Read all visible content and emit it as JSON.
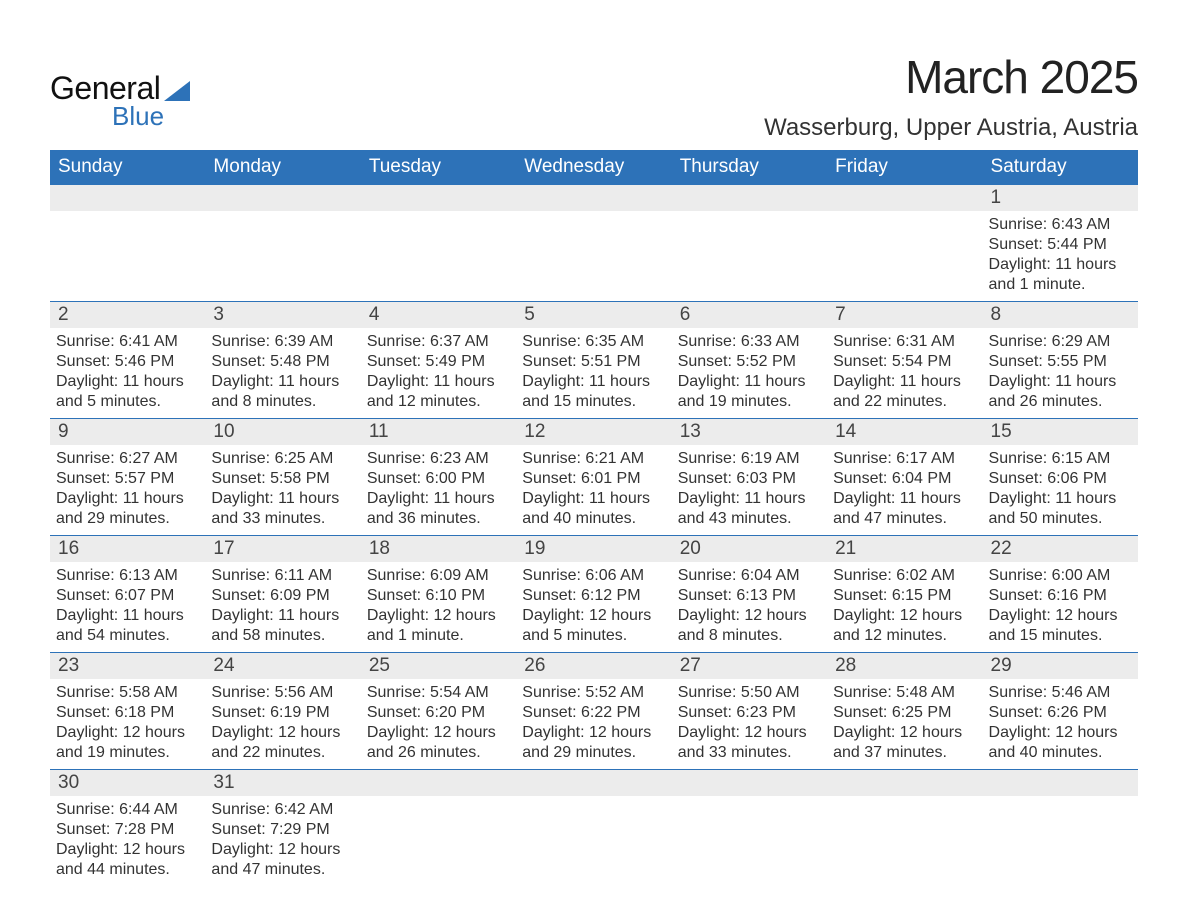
{
  "logo": {
    "text_general": "General",
    "text_blue": "Blue"
  },
  "title": "March 2025",
  "location": "Wasserburg, Upper Austria, Austria",
  "colors": {
    "header_bg": "#2d72b8",
    "header_text": "#ffffff",
    "daynum_bg": "#ececec",
    "border": "#2d72b8",
    "text": "#333333",
    "background": "#ffffff"
  },
  "fonts": {
    "title_size_pt": 34,
    "location_size_pt": 18,
    "header_size_pt": 14,
    "body_size_pt": 12
  },
  "weekdays": [
    "Sunday",
    "Monday",
    "Tuesday",
    "Wednesday",
    "Thursday",
    "Friday",
    "Saturday"
  ],
  "weeks": [
    [
      null,
      null,
      null,
      null,
      null,
      null,
      {
        "n": "1",
        "sunrise": "6:43 AM",
        "sunset": "5:44 PM",
        "daylight": "11 hours and 1 minute."
      }
    ],
    [
      {
        "n": "2",
        "sunrise": "6:41 AM",
        "sunset": "5:46 PM",
        "daylight": "11 hours and 5 minutes."
      },
      {
        "n": "3",
        "sunrise": "6:39 AM",
        "sunset": "5:48 PM",
        "daylight": "11 hours and 8 minutes."
      },
      {
        "n": "4",
        "sunrise": "6:37 AM",
        "sunset": "5:49 PM",
        "daylight": "11 hours and 12 minutes."
      },
      {
        "n": "5",
        "sunrise": "6:35 AM",
        "sunset": "5:51 PM",
        "daylight": "11 hours and 15 minutes."
      },
      {
        "n": "6",
        "sunrise": "6:33 AM",
        "sunset": "5:52 PM",
        "daylight": "11 hours and 19 minutes."
      },
      {
        "n": "7",
        "sunrise": "6:31 AM",
        "sunset": "5:54 PM",
        "daylight": "11 hours and 22 minutes."
      },
      {
        "n": "8",
        "sunrise": "6:29 AM",
        "sunset": "5:55 PM",
        "daylight": "11 hours and 26 minutes."
      }
    ],
    [
      {
        "n": "9",
        "sunrise": "6:27 AM",
        "sunset": "5:57 PM",
        "daylight": "11 hours and 29 minutes."
      },
      {
        "n": "10",
        "sunrise": "6:25 AM",
        "sunset": "5:58 PM",
        "daylight": "11 hours and 33 minutes."
      },
      {
        "n": "11",
        "sunrise": "6:23 AM",
        "sunset": "6:00 PM",
        "daylight": "11 hours and 36 minutes."
      },
      {
        "n": "12",
        "sunrise": "6:21 AM",
        "sunset": "6:01 PM",
        "daylight": "11 hours and 40 minutes."
      },
      {
        "n": "13",
        "sunrise": "6:19 AM",
        "sunset": "6:03 PM",
        "daylight": "11 hours and 43 minutes."
      },
      {
        "n": "14",
        "sunrise": "6:17 AM",
        "sunset": "6:04 PM",
        "daylight": "11 hours and 47 minutes."
      },
      {
        "n": "15",
        "sunrise": "6:15 AM",
        "sunset": "6:06 PM",
        "daylight": "11 hours and 50 minutes."
      }
    ],
    [
      {
        "n": "16",
        "sunrise": "6:13 AM",
        "sunset": "6:07 PM",
        "daylight": "11 hours and 54 minutes."
      },
      {
        "n": "17",
        "sunrise": "6:11 AM",
        "sunset": "6:09 PM",
        "daylight": "11 hours and 58 minutes."
      },
      {
        "n": "18",
        "sunrise": "6:09 AM",
        "sunset": "6:10 PM",
        "daylight": "12 hours and 1 minute."
      },
      {
        "n": "19",
        "sunrise": "6:06 AM",
        "sunset": "6:12 PM",
        "daylight": "12 hours and 5 minutes."
      },
      {
        "n": "20",
        "sunrise": "6:04 AM",
        "sunset": "6:13 PM",
        "daylight": "12 hours and 8 minutes."
      },
      {
        "n": "21",
        "sunrise": "6:02 AM",
        "sunset": "6:15 PM",
        "daylight": "12 hours and 12 minutes."
      },
      {
        "n": "22",
        "sunrise": "6:00 AM",
        "sunset": "6:16 PM",
        "daylight": "12 hours and 15 minutes."
      }
    ],
    [
      {
        "n": "23",
        "sunrise": "5:58 AM",
        "sunset": "6:18 PM",
        "daylight": "12 hours and 19 minutes."
      },
      {
        "n": "24",
        "sunrise": "5:56 AM",
        "sunset": "6:19 PM",
        "daylight": "12 hours and 22 minutes."
      },
      {
        "n": "25",
        "sunrise": "5:54 AM",
        "sunset": "6:20 PM",
        "daylight": "12 hours and 26 minutes."
      },
      {
        "n": "26",
        "sunrise": "5:52 AM",
        "sunset": "6:22 PM",
        "daylight": "12 hours and 29 minutes."
      },
      {
        "n": "27",
        "sunrise": "5:50 AM",
        "sunset": "6:23 PM",
        "daylight": "12 hours and 33 minutes."
      },
      {
        "n": "28",
        "sunrise": "5:48 AM",
        "sunset": "6:25 PM",
        "daylight": "12 hours and 37 minutes."
      },
      {
        "n": "29",
        "sunrise": "5:46 AM",
        "sunset": "6:26 PM",
        "daylight": "12 hours and 40 minutes."
      }
    ],
    [
      {
        "n": "30",
        "sunrise": "6:44 AM",
        "sunset": "7:28 PM",
        "daylight": "12 hours and 44 minutes."
      },
      {
        "n": "31",
        "sunrise": "6:42 AM",
        "sunset": "7:29 PM",
        "daylight": "12 hours and 47 minutes."
      },
      null,
      null,
      null,
      null,
      null
    ]
  ],
  "labels": {
    "sunrise": "Sunrise: ",
    "sunset": "Sunset: ",
    "daylight": "Daylight: "
  }
}
